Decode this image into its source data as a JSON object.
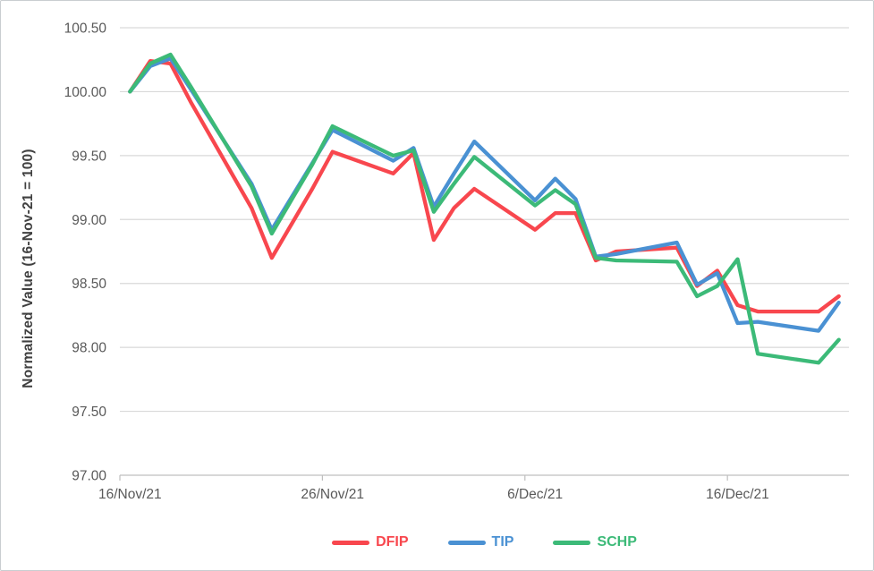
{
  "chart_data": {
    "type": "line",
    "title": "",
    "xlabel": "",
    "ylabel": "Normalized Value (16-Nov-21 = 100)",
    "grid": "horizontal",
    "legend_position": "bottom",
    "y_axis": {
      "min": 97.0,
      "max": 100.5,
      "step": 0.5
    },
    "x_axis": {
      "tick_labels": [
        "16/Nov/21",
        "26/Nov/21",
        "6/Dec/21",
        "16/Dec/21"
      ],
      "tick_offsets": [
        0,
        10,
        20,
        30
      ],
      "total_categories": 36
    },
    "x": [
      "16/Nov/21",
      "17/Nov/21",
      "18/Nov/21",
      "19/Nov/21",
      "22/Nov/21",
      "23/Nov/21",
      "24/Nov/21",
      "25/Nov/21",
      "26/Nov/21",
      "29/Nov/21",
      "30/Nov/21",
      "1/Dec/21",
      "2/Dec/21",
      "3/Dec/21",
      "6/Dec/21",
      "7/Dec/21",
      "8/Dec/21",
      "9/Dec/21",
      "10/Dec/21",
      "13/Dec/21",
      "14/Dec/21",
      "15/Dec/21",
      "16/Dec/21",
      "17/Dec/21",
      "20/Dec/21",
      "21/Dec/21"
    ],
    "calendar_offsets": [
      0,
      1,
      2,
      3,
      6,
      7,
      8,
      9,
      10,
      13,
      14,
      15,
      16,
      17,
      20,
      21,
      22,
      23,
      24,
      27,
      28,
      29,
      30,
      31,
      34,
      35
    ],
    "series": [
      {
        "name": "DFIP",
        "color": "#F8474E",
        "values": [
          100.0,
          100.24,
          100.22,
          99.92,
          99.09,
          98.7,
          98.97,
          99.24,
          99.53,
          99.36,
          99.52,
          98.84,
          99.09,
          99.24,
          98.92,
          99.05,
          99.05,
          98.68,
          98.75,
          98.78,
          98.48,
          98.6,
          98.33,
          98.28,
          98.28,
          98.4
        ]
      },
      {
        "name": "TIP",
        "color": "#4A91D3",
        "values": [
          100.0,
          100.2,
          100.26,
          100.02,
          99.28,
          98.92,
          99.18,
          99.44,
          99.7,
          99.46,
          99.56,
          99.1,
          99.36,
          99.61,
          99.15,
          99.32,
          99.16,
          98.71,
          98.73,
          98.82,
          98.49,
          98.58,
          98.19,
          98.2,
          98.13,
          98.35
        ]
      },
      {
        "name": "SCHP",
        "color": "#3CBA78",
        "values": [
          100.0,
          100.22,
          100.29,
          100.04,
          99.26,
          98.89,
          99.16,
          99.43,
          99.73,
          99.5,
          99.54,
          99.06,
          99.28,
          99.49,
          99.11,
          99.23,
          99.12,
          98.7,
          98.68,
          98.67,
          98.4,
          98.48,
          98.69,
          97.95,
          97.88,
          98.06
        ]
      }
    ],
    "style": {
      "gridline_color": "#D9D9D9",
      "axis_line_color": "#BFBFBF",
      "tick_label_color": "#595959",
      "axis_title_color": "#404040",
      "line_width": 4.3
    }
  }
}
